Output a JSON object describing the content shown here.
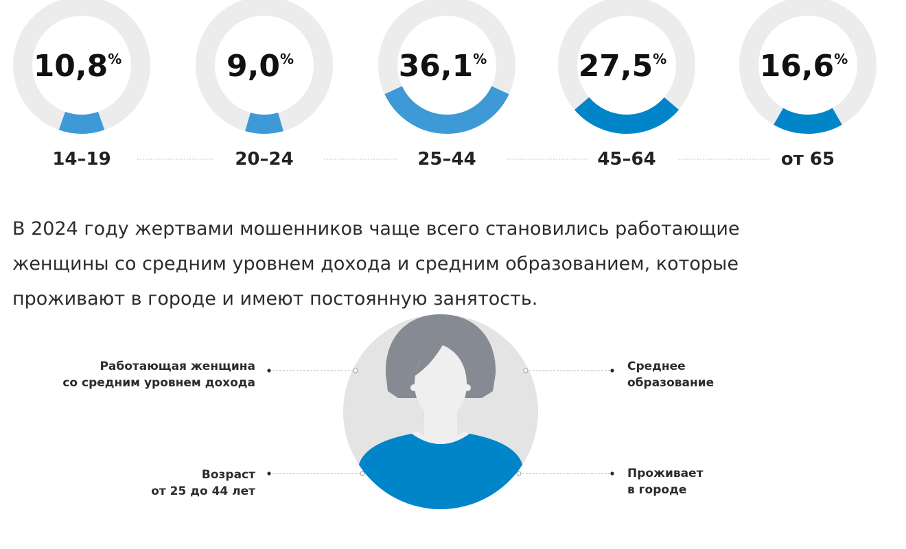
{
  "chart_data": {
    "type": "donut",
    "categories": [
      "14–19",
      "20–24",
      "25–44",
      "45–64",
      "от 65"
    ],
    "values": [
      10.8,
      9.0,
      36.1,
      27.5,
      16.6
    ],
    "value_labels": [
      "10,8",
      "9,0",
      "36,1",
      "27,5",
      "16,6"
    ],
    "unit": "%",
    "ylim": [
      0,
      100
    ],
    "colors": [
      "#3d9ad6",
      "#3d9ad6",
      "#3d9ad6",
      "#0086c8",
      "#0086c8"
    ],
    "track_color": "#ececec"
  },
  "summary": {
    "line1": "В 2024 году жертвами мошенников чаще всего становились работающие",
    "line2": "женщины со средним уровнем дохода и средним образованием, которые",
    "line3": "проживают в городе и имеют постоянную занятость."
  },
  "traits": {
    "top_left": [
      "Работающая женщина",
      "со средним уровнем дохода"
    ],
    "top_right": [
      "Среднее",
      "образование"
    ],
    "bottom_left": [
      "Возраст",
      "от 25 до 44 лет"
    ],
    "bottom_right": [
      "Проживает",
      "в городе"
    ]
  },
  "colors": {
    "hair": "#868a93",
    "face": "#efefef",
    "body": "#0086c8",
    "background_circle": "#e4e4e4",
    "connector": "#b5b5b5",
    "dot": "#2b2b2b"
  }
}
